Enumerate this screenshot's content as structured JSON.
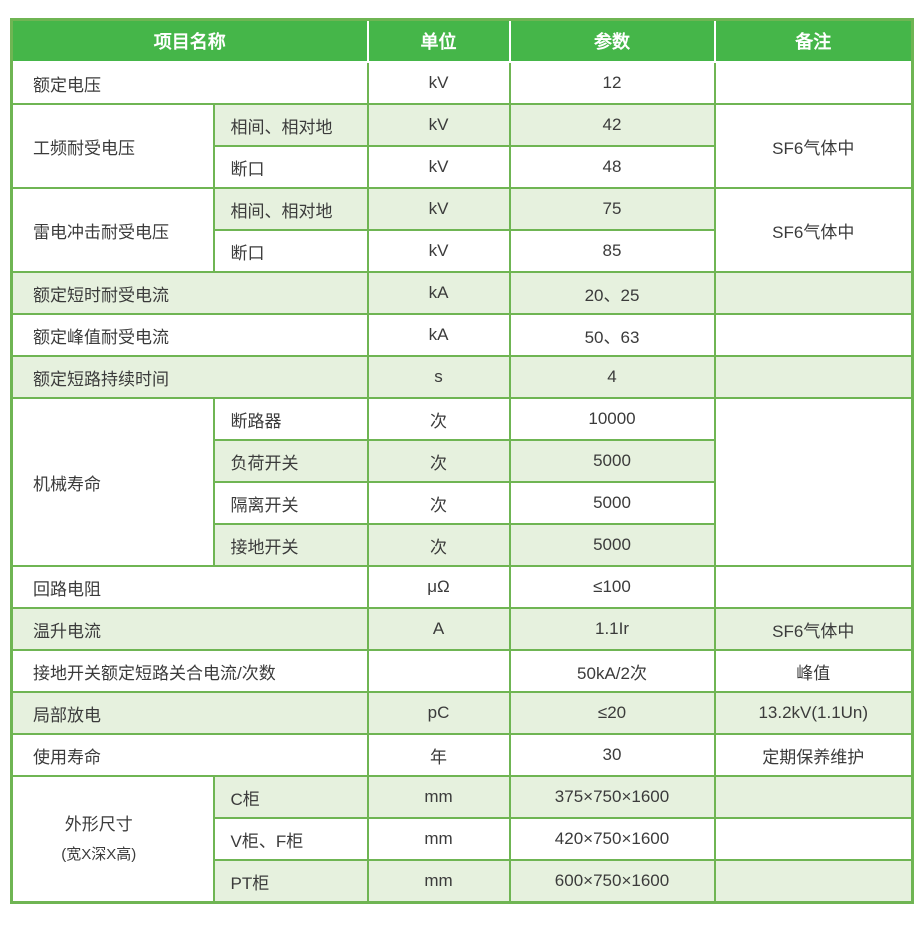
{
  "table": {
    "colors": {
      "header_bg": "#45b649",
      "header_text": "#ffffff",
      "border_green": "#6fb553",
      "row_alt_bg": "#e6f1de",
      "body_text": "#3b3b3b"
    },
    "header": [
      "项目名称",
      "单位",
      "参数",
      "备注"
    ],
    "rows": [
      [
        {
          "t": "额定电压",
          "cs": 2,
          "left": true,
          "kind": "item"
        },
        {
          "t": "kV",
          "kind": "unit"
        },
        {
          "t": "12",
          "kind": "param"
        },
        {
          "t": "",
          "kind": "remark"
        }
      ],
      [
        {
          "t": "工频耐受电压",
          "rs": 2,
          "left": true,
          "kind": "item"
        },
        {
          "t": "相间、相对地",
          "g": true,
          "left": true,
          "kind": "sub"
        },
        {
          "t": "kV",
          "g": true,
          "kind": "unit"
        },
        {
          "t": "42",
          "g": true,
          "kind": "param"
        },
        {
          "t": "SF6气体中",
          "rs": 2,
          "kind": "remark"
        }
      ],
      [
        {
          "t": "断口",
          "left": true,
          "kind": "sub"
        },
        {
          "t": "kV",
          "kind": "unit"
        },
        {
          "t": "48",
          "kind": "param"
        }
      ],
      [
        {
          "t": "雷电冲击耐受电压",
          "rs": 2,
          "left": true,
          "kind": "item"
        },
        {
          "t": "相间、相对地",
          "g": true,
          "left": true,
          "kind": "sub"
        },
        {
          "t": "kV",
          "g": true,
          "kind": "unit"
        },
        {
          "t": "75",
          "g": true,
          "kind": "param"
        },
        {
          "t": "SF6气体中",
          "rs": 2,
          "kind": "remark"
        }
      ],
      [
        {
          "t": "断口",
          "left": true,
          "kind": "sub"
        },
        {
          "t": "kV",
          "kind": "unit"
        },
        {
          "t": "85",
          "kind": "param"
        }
      ],
      [
        {
          "t": "额定短时耐受电流",
          "cs": 2,
          "g": true,
          "left": true,
          "kind": "item"
        },
        {
          "t": "kA",
          "g": true,
          "kind": "unit"
        },
        {
          "t": "20、25",
          "g": true,
          "kind": "param"
        },
        {
          "t": "",
          "g": true,
          "kind": "remark"
        }
      ],
      [
        {
          "t": "额定峰值耐受电流",
          "cs": 2,
          "left": true,
          "kind": "item"
        },
        {
          "t": "kA",
          "kind": "unit"
        },
        {
          "t": "50、63",
          "kind": "param"
        },
        {
          "t": "",
          "kind": "remark"
        }
      ],
      [
        {
          "t": "额定短路持续时间",
          "cs": 2,
          "g": true,
          "left": true,
          "kind": "item"
        },
        {
          "t": "s",
          "g": true,
          "kind": "unit"
        },
        {
          "t": "4",
          "g": true,
          "kind": "param"
        },
        {
          "t": "",
          "g": true,
          "kind": "remark"
        }
      ],
      [
        {
          "t": "机械寿命",
          "rs": 4,
          "left": true,
          "kind": "item"
        },
        {
          "t": "断路器",
          "left": true,
          "kind": "sub"
        },
        {
          "t": "次",
          "kind": "unit"
        },
        {
          "t": "10000",
          "kind": "param"
        },
        {
          "t": "",
          "rs": 4,
          "kind": "remark"
        }
      ],
      [
        {
          "t": "负荷开关",
          "g": true,
          "left": true,
          "kind": "sub"
        },
        {
          "t": "次",
          "g": true,
          "kind": "unit"
        },
        {
          "t": "5000",
          "g": true,
          "kind": "param"
        }
      ],
      [
        {
          "t": "隔离开关",
          "left": true,
          "kind": "sub"
        },
        {
          "t": "次",
          "kind": "unit"
        },
        {
          "t": "5000",
          "kind": "param"
        }
      ],
      [
        {
          "t": "接地开关",
          "g": true,
          "left": true,
          "kind": "sub"
        },
        {
          "t": "次",
          "g": true,
          "kind": "unit"
        },
        {
          "t": "5000",
          "g": true,
          "kind": "param"
        }
      ],
      [
        {
          "t": "回路电阻",
          "cs": 2,
          "left": true,
          "kind": "item"
        },
        {
          "t": "μΩ",
          "kind": "unit"
        },
        {
          "t": "≤100",
          "kind": "param"
        },
        {
          "t": "",
          "kind": "remark"
        }
      ],
      [
        {
          "t": "温升电流",
          "cs": 2,
          "g": true,
          "left": true,
          "kind": "item"
        },
        {
          "t": "A",
          "g": true,
          "kind": "unit"
        },
        {
          "t": "1.1Ir",
          "g": true,
          "kind": "param"
        },
        {
          "t": "SF6气体中",
          "g": true,
          "kind": "remark"
        }
      ],
      [
        {
          "t": "接地开关额定短路关合电流/次数",
          "cs": 2,
          "left": true,
          "kind": "item"
        },
        {
          "t": "",
          "kind": "unit"
        },
        {
          "t": "50kA/2次",
          "kind": "param"
        },
        {
          "t": "峰值",
          "kind": "remark"
        }
      ],
      [
        {
          "t": "局部放电",
          "cs": 2,
          "g": true,
          "left": true,
          "kind": "item"
        },
        {
          "t": "pC",
          "g": true,
          "kind": "unit"
        },
        {
          "t": "≤20",
          "g": true,
          "kind": "param"
        },
        {
          "t": "13.2kV(1.1Un)",
          "g": true,
          "kind": "remark"
        }
      ],
      [
        {
          "t": "使用寿命",
          "cs": 2,
          "left": true,
          "kind": "item"
        },
        {
          "t": "年",
          "kind": "unit"
        },
        {
          "t": "30",
          "kind": "param"
        },
        {
          "t": "定期保养维护",
          "kind": "remark"
        }
      ],
      [
        {
          "t": "外形尺寸\n(宽X深X高)",
          "rs": 3,
          "kind": "item",
          "dims": true
        },
        {
          "t": "C柜",
          "g": true,
          "left": true,
          "kind": "sub"
        },
        {
          "t": "mm",
          "g": true,
          "kind": "unit"
        },
        {
          "t": "375×750×1600",
          "g": true,
          "kind": "param"
        },
        {
          "t": "",
          "g": true,
          "kind": "remark"
        }
      ],
      [
        {
          "t": "V柜、F柜",
          "left": true,
          "kind": "sub"
        },
        {
          "t": "mm",
          "kind": "unit"
        },
        {
          "t": "420×750×1600",
          "kind": "param"
        },
        {
          "t": "",
          "kind": "remark"
        }
      ],
      [
        {
          "t": "PT柜",
          "g": true,
          "left": true,
          "kind": "sub"
        },
        {
          "t": "mm",
          "g": true,
          "kind": "unit"
        },
        {
          "t": "600×750×1600",
          "g": true,
          "kind": "param"
        },
        {
          "t": "",
          "g": true,
          "kind": "remark"
        }
      ]
    ]
  }
}
